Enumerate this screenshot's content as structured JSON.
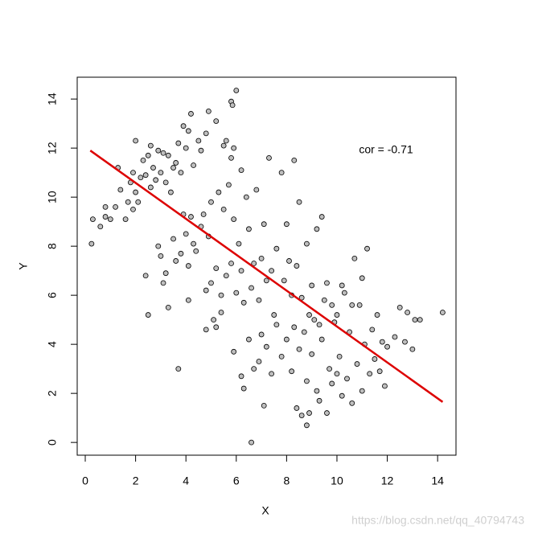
{
  "chart_data": {
    "type": "scatter",
    "x_label": "X",
    "y_label": "Y",
    "annotation": "cor = -0.71",
    "watermark": "https://blog.csdn.net/qq_40794743",
    "xlim": [
      -0.32,
      14.73
    ],
    "ylim": [
      -0.52,
      14.89
    ],
    "xticks": [
      0,
      2,
      4,
      6,
      8,
      10,
      12,
      14
    ],
    "yticks": [
      0,
      2,
      4,
      6,
      8,
      10,
      12,
      14
    ],
    "grid": false,
    "point_color": "#bebebe",
    "x": [
      0.6,
      0.8,
      0.8,
      1.0,
      1.2,
      1.3,
      1.4,
      1.6,
      1.7,
      1.8,
      1.9,
      1.9,
      2.0,
      2.0,
      2.1,
      2.2,
      2.3,
      2.4,
      2.5,
      2.6,
      2.6,
      2.7,
      2.8,
      2.9,
      3.0,
      3.1,
      3.2,
      3.3,
      3.4,
      3.5,
      3.6,
      3.7,
      3.8,
      3.9,
      4.0,
      4.1,
      4.2,
      4.3,
      4.5,
      4.6,
      4.8,
      4.9,
      5.2,
      5.5,
      5.6,
      5.8,
      5.9,
      6.2,
      2.9,
      3.0,
      3.1,
      3.2,
      3.3,
      3.5,
      3.6,
      3.8,
      3.9,
      4.0,
      4.1,
      4.1,
      4.2,
      4.3,
      4.4,
      4.6,
      4.7,
      4.8,
      4.9,
      5.0,
      5.0,
      5.1,
      5.2,
      5.3,
      5.4,
      5.5,
      5.6,
      5.7,
      5.8,
      5.9,
      6.0,
      6.1,
      6.2,
      6.3,
      6.4,
      6.5,
      6.6,
      6.7,
      6.8,
      6.9,
      7.0,
      7.1,
      7.2,
      7.3,
      7.4,
      7.5,
      7.6,
      7.8,
      7.9,
      8.0,
      8.1,
      8.3,
      8.4,
      8.5,
      8.6,
      8.8,
      9.0,
      9.2,
      9.4,
      9.6,
      4.8,
      5.2,
      5.4,
      5.9,
      6.2,
      6.5,
      6.7,
      6.9,
      7.0,
      7.2,
      7.4,
      7.6,
      7.8,
      8.0,
      8.2,
      8.3,
      8.4,
      8.5,
      8.6,
      8.7,
      8.8,
      8.9,
      9.0,
      9.1,
      9.2,
      9.3,
      9.4,
      9.5,
      9.6,
      9.7,
      9.8,
      9.9,
      10.0,
      10.1,
      10.2,
      10.3,
      10.4,
      10.5,
      10.6,
      10.7,
      10.8,
      10.9,
      11.0,
      11.1,
      11.2,
      11.3,
      11.4,
      11.5,
      11.6,
      11.7,
      11.8,
      11.9,
      12.0,
      12.3,
      12.5,
      12.7,
      12.8,
      13.0,
      13.1,
      13.3,
      10.0,
      10.2,
      9.8,
      10.6,
      11.0,
      9.3,
      8.9,
      8.2,
      6.0,
      5.8,
      5.85,
      0.3,
      0.25,
      3.7,
      6.6,
      8.8,
      14.2,
      2.5,
      2.4,
      7.1,
      6.3
    ],
    "y": [
      8.8,
      9.6,
      9.2,
      9.1,
      9.6,
      11.2,
      10.3,
      9.1,
      9.8,
      10.6,
      9.5,
      11.0,
      12.3,
      10.2,
      9.8,
      10.8,
      11.5,
      10.9,
      11.7,
      12.1,
      10.4,
      11.2,
      10.7,
      11.9,
      11.0,
      11.8,
      10.6,
      11.7,
      10.2,
      11.2,
      11.4,
      12.2,
      11.0,
      12.9,
      12.0,
      12.7,
      13.4,
      11.3,
      12.3,
      11.9,
      12.6,
      13.5,
      13.1,
      12.1,
      12.3,
      11.6,
      12.0,
      11.1,
      8.0,
      7.6,
      6.5,
      6.9,
      5.5,
      8.3,
      7.4,
      7.7,
      9.3,
      8.5,
      7.2,
      5.8,
      9.2,
      8.1,
      7.8,
      8.8,
      9.3,
      6.2,
      8.4,
      6.5,
      9.8,
      5.0,
      7.1,
      10.2,
      6.0,
      9.5,
      6.8,
      10.5,
      7.3,
      9.1,
      6.1,
      8.1,
      7.0,
      5.7,
      10.0,
      8.7,
      6.3,
      7.3,
      10.3,
      5.8,
      7.5,
      8.9,
      6.6,
      11.6,
      7.0,
      5.2,
      7.9,
      11.0,
      6.6,
      8.9,
      7.4,
      11.5,
      7.2,
      9.8,
      5.9,
      8.1,
      6.4,
      8.7,
      9.2,
      6.5,
      4.6,
      4.7,
      5.3,
      3.7,
      2.7,
      4.2,
      3.0,
      3.3,
      4.4,
      3.9,
      2.8,
      4.8,
      3.5,
      4.2,
      2.9,
      4.7,
      1.4,
      3.8,
      1.1,
      4.5,
      2.5,
      1.2,
      3.6,
      5.0,
      2.1,
      1.7,
      4.2,
      5.8,
      1.2,
      3.0,
      2.4,
      4.9,
      2.8,
      3.5,
      1.9,
      6.1,
      2.6,
      4.5,
      1.6,
      7.5,
      3.2,
      5.6,
      2.1,
      4.0,
      7.9,
      2.8,
      4.6,
      3.4,
      5.2,
      2.9,
      4.1,
      2.3,
      3.9,
      4.3,
      5.5,
      4.1,
      5.3,
      3.8,
      5.0,
      5.0,
      5.2,
      6.4,
      5.6,
      5.6,
      6.7,
      4.8,
      5.2,
      6.0,
      14.35,
      13.9,
      13.75,
      9.1,
      8.1,
      3.0,
      0.0,
      0.7,
      5.3,
      5.2,
      6.8,
      1.5,
      2.2
    ],
    "fit_line": {
      "x": [
        0.2,
        14.2
      ],
      "y": [
        11.9,
        1.65
      ],
      "color": "#dd0000"
    }
  }
}
